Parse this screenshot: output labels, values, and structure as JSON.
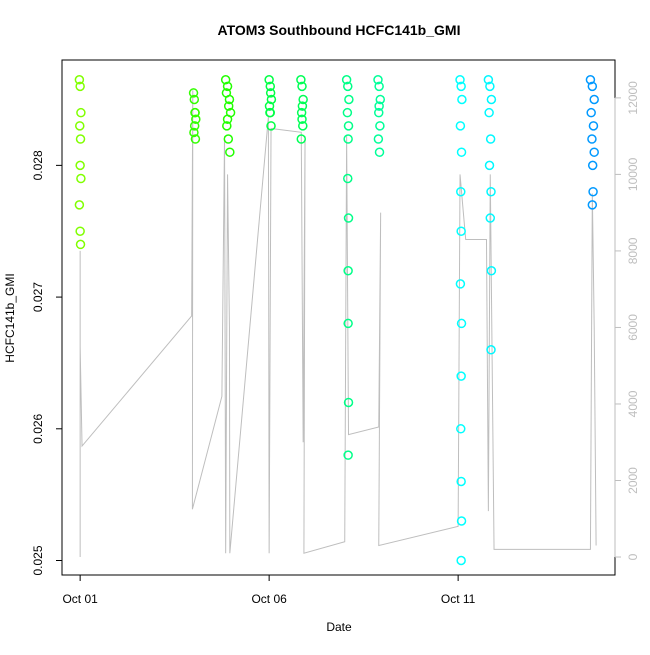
{
  "chart_data": {
    "type": "scatter",
    "title": "ATOM3 Southbound HCFC141b_GMI",
    "xlabel": "Date",
    "ylabel": "HCFC141b_GMI",
    "xlim": [
      0.52,
      15.15
    ],
    "xticks": [
      {
        "value": 1,
        "label": "Oct 01"
      },
      {
        "value": 6,
        "label": "Oct 06"
      },
      {
        "value": 11,
        "label": "Oct 11"
      }
    ],
    "ylim": [
      0.02489,
      0.0288
    ],
    "yticks": [
      0.025,
      0.026,
      0.027,
      0.028
    ],
    "y2lim": [
      -470,
      12990
    ],
    "y2ticks": [
      0,
      2000,
      4000,
      6000,
      8000,
      10000,
      12000
    ],
    "y2color": "#bebebe",
    "series": [
      {
        "kind": "line",
        "axis": "y2",
        "color": "#bebebe",
        "x": [
          1.0,
          1.0,
          1.0,
          1.05,
          3.95,
          3.98,
          3.97,
          4.75,
          4.82,
          4.85,
          4.9,
          4.95,
          4.96,
          5.98,
          6.0,
          6.05,
          6.85,
          6.9,
          6.95,
          6.92,
          8.0,
          8.05,
          8.1,
          8.9,
          8.95,
          8.9,
          11.0,
          11.05,
          11.2,
          11.75,
          11.8,
          11.85,
          11.95,
          14.5,
          14.55,
          14.6,
          14.65
        ],
        "values": [
          0,
          8000,
          5500,
          2900,
          6300,
          12200,
          1250,
          4200,
          11000,
          100,
          10000,
          6000,
          100,
          11500,
          100,
          11200,
          11100,
          3000,
          11000,
          100,
          400,
          11000,
          3200,
          3400,
          9000,
          300,
          800,
          10000,
          8300,
          8300,
          1200,
          10000,
          200,
          200,
          9500,
          6000,
          300
        ]
      },
      {
        "kind": "points",
        "color": "#80ff00",
        "x": [
          0.98,
          1.0,
          1.02,
          0.99,
          1.01,
          1.0,
          1.02,
          0.98,
          1.0,
          1.01
        ],
        "values": [
          0.02865,
          0.0286,
          0.0284,
          0.0283,
          0.0282,
          0.028,
          0.0279,
          0.0277,
          0.0275,
          0.0274
        ]
      },
      {
        "kind": "points",
        "color": "#33ff00",
        "x": [
          4.0,
          4.02,
          4.04,
          4.06,
          4.03,
          4.05,
          4.01,
          4.04
        ],
        "values": [
          0.02855,
          0.0285,
          0.0284,
          0.02835,
          0.0283,
          0.0282,
          0.02825,
          0.0284
        ]
      },
      {
        "kind": "points",
        "color": "#22ff00",
        "x": [
          4.85,
          4.9,
          4.95,
          4.98,
          4.88,
          4.92,
          4.96,
          4.87,
          4.93,
          4.9
        ],
        "values": [
          0.02865,
          0.0286,
          0.0285,
          0.0284,
          0.0283,
          0.0282,
          0.0281,
          0.02855,
          0.02845,
          0.02835
        ]
      },
      {
        "kind": "points",
        "color": "#00ff44",
        "x": [
          6.0,
          6.03,
          6.06,
          6.02,
          6.05,
          6.01,
          6.04,
          6.03
        ],
        "values": [
          0.02865,
          0.0286,
          0.0285,
          0.0284,
          0.0283,
          0.02845,
          0.02855,
          0.0284
        ]
      },
      {
        "kind": "points",
        "color": "#00ff55",
        "x": [
          6.84,
          6.87,
          6.9,
          6.86,
          6.89,
          6.85,
          6.88,
          6.87
        ],
        "values": [
          0.02865,
          0.0286,
          0.0285,
          0.0284,
          0.0283,
          0.0282,
          0.02845,
          0.02835
        ]
      },
      {
        "kind": "points",
        "color": "#00ff88",
        "x": [
          8.05,
          8.08,
          8.11,
          8.07,
          8.1,
          8.09,
          8.08,
          8.1,
          8.09,
          8.09,
          8.1,
          8.09
        ],
        "values": [
          0.02865,
          0.0286,
          0.0285,
          0.0284,
          0.0283,
          0.0282,
          0.0279,
          0.0276,
          0.0272,
          0.0268,
          0.0262,
          0.0258
        ]
      },
      {
        "kind": "points",
        "color": "#00ff99",
        "x": [
          8.88,
          8.91,
          8.94,
          8.9,
          8.93,
          8.89,
          8.92,
          8.91
        ],
        "values": [
          0.02865,
          0.0286,
          0.0285,
          0.0284,
          0.0283,
          0.0282,
          0.0281,
          0.02845
        ]
      },
      {
        "kind": "points",
        "color": "#00ffff",
        "x": [
          11.05,
          11.08,
          11.1,
          11.06,
          11.09,
          11.07,
          11.08,
          11.06,
          11.09,
          11.08,
          11.07,
          11.08,
          11.09,
          11.08
        ],
        "values": [
          0.02865,
          0.0286,
          0.0285,
          0.0283,
          0.0281,
          0.0278,
          0.0275,
          0.0271,
          0.0268,
          0.0264,
          0.026,
          0.0256,
          0.0253,
          0.025
        ]
      },
      {
        "kind": "points",
        "color": "#00f8ff",
        "x": [
          11.8,
          11.84,
          11.88,
          11.82,
          11.86,
          11.83,
          11.87,
          11.85,
          11.88,
          11.87
        ],
        "values": [
          0.02865,
          0.0286,
          0.0285,
          0.0284,
          0.0282,
          0.028,
          0.0278,
          0.0276,
          0.0272,
          0.0266
        ]
      },
      {
        "kind": "points",
        "color": "#0099ff",
        "x": [
          14.5,
          14.55,
          14.6,
          14.52,
          14.58,
          14.54,
          14.6,
          14.56,
          14.57,
          14.55
        ],
        "values": [
          0.02865,
          0.0286,
          0.0285,
          0.0284,
          0.0283,
          0.0282,
          0.0281,
          0.028,
          0.0278,
          0.0277
        ]
      }
    ]
  }
}
